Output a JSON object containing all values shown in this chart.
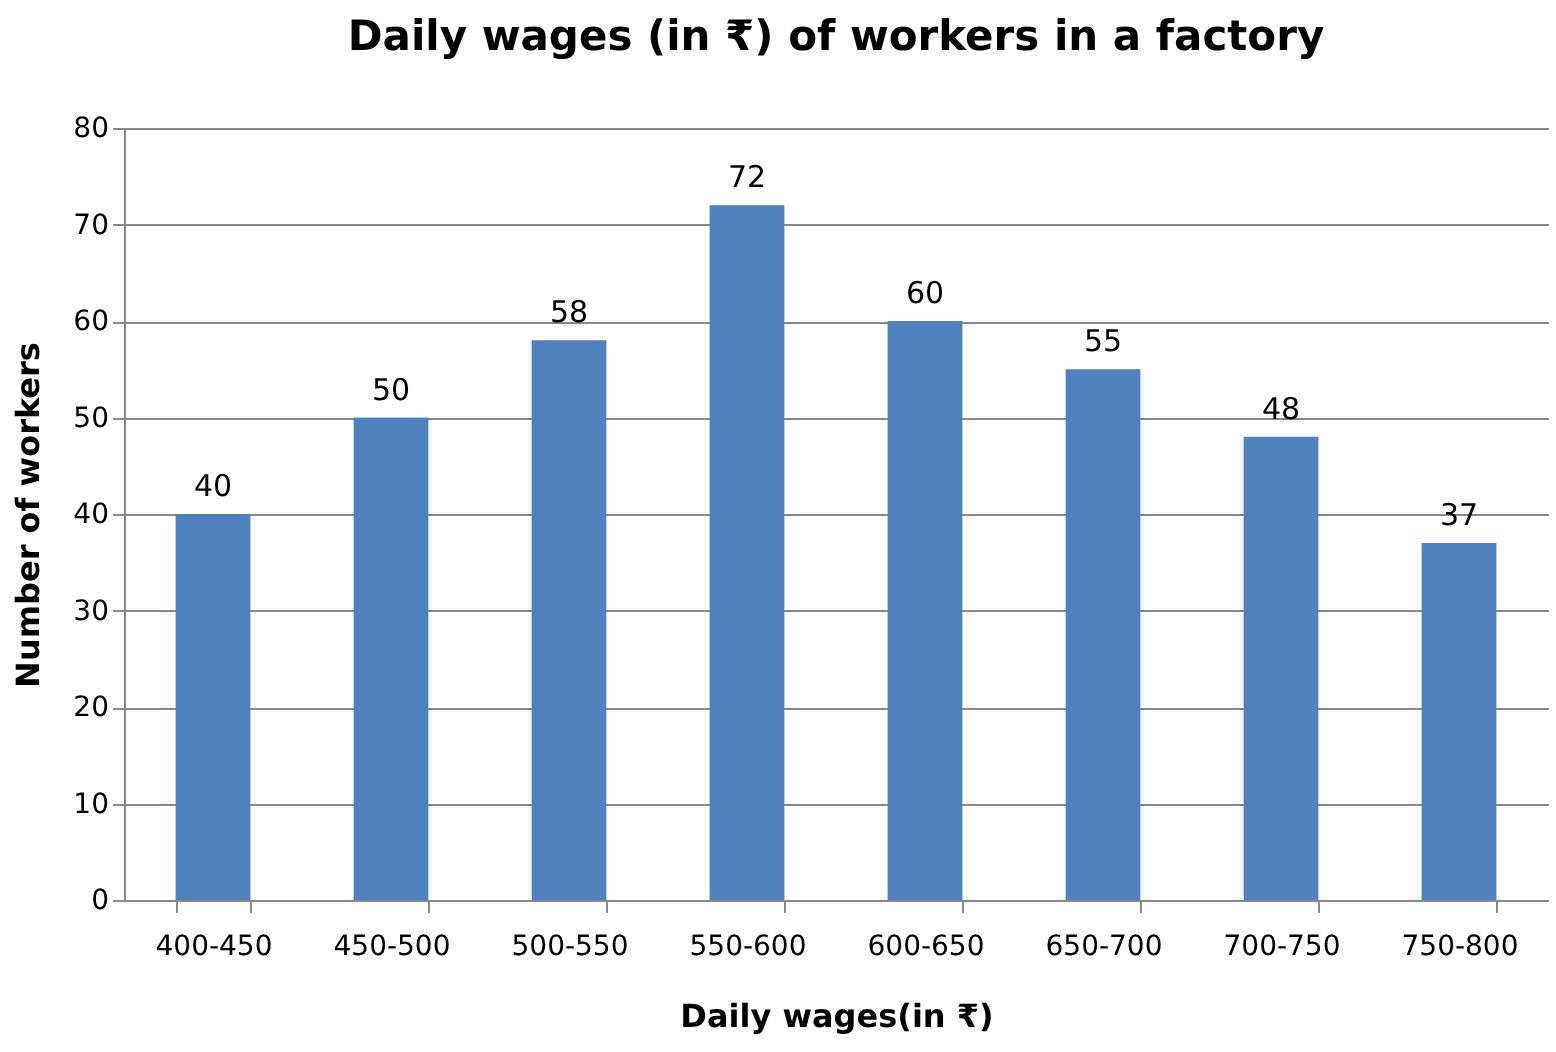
{
  "chart_data": {
    "type": "bar",
    "title": "Daily wages (in ₹) of workers in a factory",
    "xlabel": "Daily wages(in ₹)",
    "ylabel": "Number of workers",
    "categories": [
      "400-450",
      "450-500",
      "500-550",
      "550-600",
      "600-650",
      "650-700",
      "700-750",
      "750-800"
    ],
    "values": [
      40,
      50,
      58,
      72,
      60,
      55,
      48,
      37
    ],
    "color": "#4f81bd",
    "ylim": [
      0,
      80
    ],
    "yticks": [
      0,
      10,
      20,
      30,
      40,
      50,
      60,
      70,
      80
    ],
    "grid": "y",
    "data_labels": true
  }
}
